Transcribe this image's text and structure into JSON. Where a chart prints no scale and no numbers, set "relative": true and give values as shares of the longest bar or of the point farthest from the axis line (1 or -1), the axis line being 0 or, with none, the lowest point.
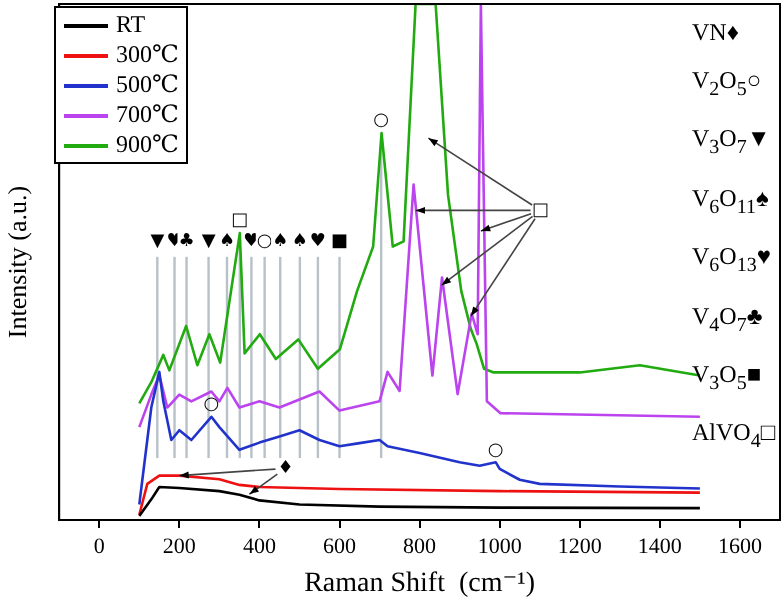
{
  "chart_data": {
    "type": "line",
    "relative": true,
    "xlabel": "Raman Shift  (cm⁻¹)",
    "ylabel": "Intensity (a.u.)",
    "xlim": [
      -100,
      1700
    ],
    "xticks": [
      0,
      200,
      400,
      600,
      800,
      1000,
      1200,
      1400,
      1600
    ],
    "legend": "top left",
    "series": [
      {
        "name": "RT",
        "color": "#000000",
        "x": [
          100,
          130,
          150,
          200,
          300,
          350,
          400,
          500,
          700,
          1000,
          1500
        ],
        "values": [
          0.008,
          0.04,
          0.064,
          0.062,
          0.056,
          0.049,
          0.038,
          0.03,
          0.026,
          0.024,
          0.023
        ]
      },
      {
        "name": "300℃",
        "color": "#ee1111",
        "x": [
          100,
          120,
          150,
          200,
          300,
          350,
          400,
          600,
          1000,
          1500
        ],
        "values": [
          0.01,
          0.07,
          0.086,
          0.086,
          0.079,
          0.068,
          0.064,
          0.06,
          0.056,
          0.053
        ]
      },
      {
        "name": "500℃",
        "color": "#2233cc",
        "x": [
          100,
          130,
          150,
          160,
          180,
          200,
          230,
          280,
          300,
          350,
          400,
          450,
          500,
          550,
          600,
          650,
          700,
          720,
          800,
          900,
          950,
          990,
          1000,
          1050,
          1100,
          1300,
          1500
        ],
        "values": [
          0.03,
          0.218,
          0.287,
          0.23,
          0.155,
          0.174,
          0.155,
          0.2,
          0.18,
          0.136,
          0.15,
          0.162,
          0.174,
          0.155,
          0.143,
          0.149,
          0.155,
          0.143,
          0.13,
          0.112,
          0.105,
          0.112,
          0.099,
          0.078,
          0.07,
          0.065,
          0.061
        ]
      },
      {
        "name": "700℃",
        "color": "#bb44ee",
        "x": [
          100,
          130,
          150,
          170,
          200,
          230,
          280,
          300,
          320,
          350,
          400,
          450,
          550,
          600,
          700,
          720,
          750,
          785,
          832,
          856,
          895,
          930,
          945,
          953,
          968,
          1002,
          1500
        ],
        "values": [
          0.18,
          0.243,
          0.281,
          0.218,
          0.243,
          0.23,
          0.249,
          0.23,
          0.256,
          0.218,
          0.23,
          0.218,
          0.249,
          0.212,
          0.23,
          0.287,
          0.25,
          0.65,
          0.28,
          0.47,
          0.244,
          0.4,
          0.36,
          1,
          0.23,
          0.207,
          0.2
        ]
      },
      {
        "name": "900℃",
        "color": "#22aa11",
        "x": [
          100,
          130,
          160,
          175,
          217,
          245,
          275,
          302,
          351,
          363,
          401,
          441,
          497,
          546,
          601,
          644,
          684,
          705,
          733,
          760,
          790,
          840,
          871,
          904,
          928,
          943,
          961,
          985,
          1200,
          1350,
          1500
        ],
        "values": [
          0.226,
          0.267,
          0.32,
          0.29,
          0.376,
          0.3,
          0.36,
          0.305,
          0.556,
          0.323,
          0.36,
          0.312,
          0.35,
          0.293,
          0.331,
          0.444,
          0.53,
          0.75,
          0.53,
          0.54,
          1,
          1,
          0.63,
          0.444,
          0.37,
          0.34,
          0.293,
          0.286,
          0.286,
          0.3,
          0.28
        ]
      }
    ],
    "ref_lines": [
      {
        "axis": "x",
        "value": 145,
        "label": "▼",
        "color": "#b8c0c8"
      },
      {
        "axis": "x",
        "value": 188,
        "label": "♥",
        "color": "#b8c0c8"
      },
      {
        "axis": "x",
        "value": 218,
        "label": "♣",
        "color": "#b8c0c8"
      },
      {
        "axis": "x",
        "value": 273,
        "label": "▼",
        "color": "#b8c0c8"
      },
      {
        "axis": "x",
        "value": 319,
        "label": "♠",
        "color": "#b8c0c8"
      },
      {
        "axis": "x",
        "value": 351,
        "label": "□",
        "color": "#b8c0c8"
      },
      {
        "axis": "x",
        "value": 380,
        "label": "♥",
        "color": "#b8c0c8"
      },
      {
        "axis": "x",
        "value": 413,
        "label": "○",
        "color": "#b8c0c8"
      },
      {
        "axis": "x",
        "value": 452,
        "label": "♠",
        "color": "#b8c0c8"
      },
      {
        "axis": "x",
        "value": 501,
        "label": "♠",
        "color": "#b8c0c8"
      },
      {
        "axis": "x",
        "value": 546,
        "label": "♥",
        "color": "#b8c0c8"
      },
      {
        "axis": "x",
        "value": 600,
        "label": "■",
        "color": "#b8c0c8"
      },
      {
        "axis": "x",
        "value": 704,
        "label": "○",
        "color": "#b8c0c8"
      }
    ],
    "annotations": [
      {
        "text": "○",
        "x": 280,
        "y": 0.2
      },
      {
        "text": "○",
        "x": 990,
        "y": 0.112
      },
      "♦",
      "□",
      "VN♦",
      "V$_{2}$O$_{5}$○",
      "V$_{3}$O$_{7}$▼",
      "V$_{6}$O$_{11}$♠",
      "V$_{6}$O$_{13}$♥",
      "V$_{4}$O$_{7}$♣",
      "V$_{3}$O$_{5}$■",
      "AlVO$_{4}$□"
    ]
  }
}
